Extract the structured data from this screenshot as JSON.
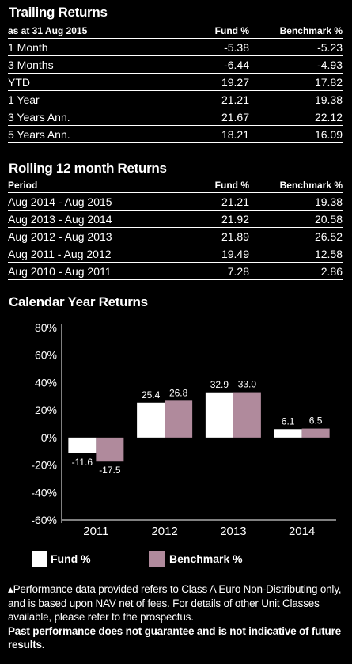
{
  "trailing": {
    "title": "Trailing Returns",
    "headers": [
      "as at 31 Aug 2015",
      "Fund %",
      "Benchmark %"
    ],
    "rows": [
      [
        "1 Month",
        "-5.38",
        "-5.23"
      ],
      [
        "3 Months",
        "-6.44",
        "-4.93"
      ],
      [
        "YTD",
        "19.27",
        "17.82"
      ],
      [
        "1 Year",
        "21.21",
        "19.38"
      ],
      [
        "3 Years Ann.",
        "21.67",
        "22.12"
      ],
      [
        "5 Years Ann.",
        "18.21",
        "16.09"
      ]
    ]
  },
  "rolling": {
    "title": "Rolling 12 month Returns",
    "headers": [
      "Period",
      "Fund %",
      "Benchmark %"
    ],
    "rows": [
      [
        "Aug 2014 - Aug 2015",
        "21.21",
        "19.38"
      ],
      [
        "Aug 2013 - Aug 2014",
        "21.92",
        "20.58"
      ],
      [
        "Aug 2012 - Aug 2013",
        "21.89",
        "26.52"
      ],
      [
        "Aug 2011 - Aug 2012",
        "19.49",
        "12.58"
      ],
      [
        "Aug 2010 - Aug 2011",
        "7.28",
        "2.86"
      ]
    ]
  },
  "calendar": {
    "title": "Calendar Year Returns"
  },
  "chart_data": {
    "type": "bar",
    "categories": [
      "2011",
      "2012",
      "2013",
      "2014"
    ],
    "series": [
      {
        "name": "Fund %",
        "values": [
          -11.6,
          25.4,
          32.9,
          6.1
        ],
        "color": "#ffffff"
      },
      {
        "name": "Benchmark %",
        "values": [
          -17.5,
          26.8,
          33.0,
          6.5
        ],
        "color": "#b08a9c"
      }
    ],
    "data_labels": [
      [
        "-11.6",
        "25.4",
        "32.9",
        "6.1"
      ],
      [
        "-17.5",
        "26.8",
        "33.0",
        "6.5"
      ]
    ],
    "yticks": [
      "80%",
      "60%",
      "40%",
      "20%",
      "0%",
      "-20%",
      "-40%",
      "-60%"
    ],
    "ylim": [
      -60,
      80
    ],
    "grid": false,
    "legend_position": "bottom"
  },
  "footnote": {
    "line1": "▴Performance data provided refers to Class A Euro Non-Distributing only, and is based upon NAV net of fees. For details of other Unit Classes available, please refer to the prospectus.",
    "line2": "Past performance does not guarantee and is not indicative of future results."
  }
}
